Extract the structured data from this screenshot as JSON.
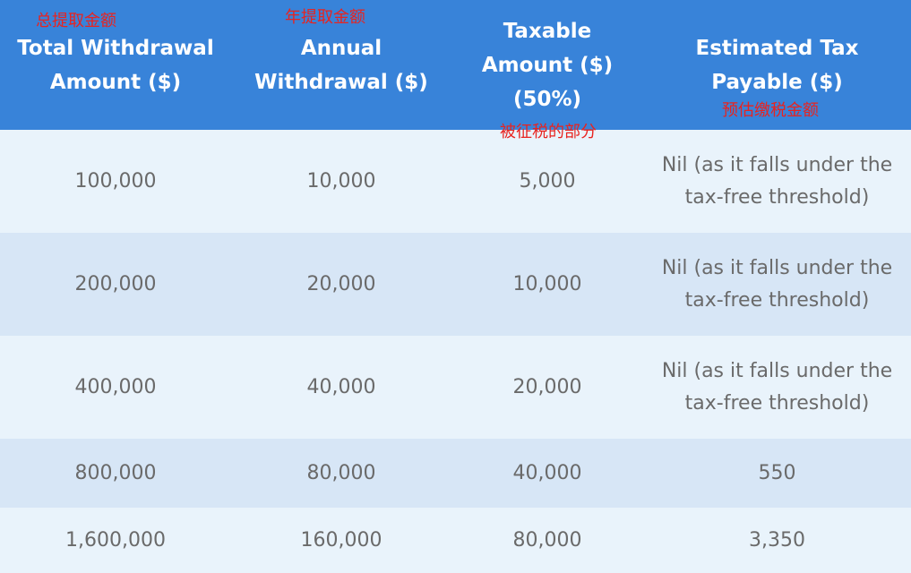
{
  "header": {
    "columns": [
      {
        "lines": [
          "Total Withdrawal",
          "Amount ($)"
        ],
        "note": "总提取金额"
      },
      {
        "lines": [
          "Annual",
          "Withdrawal ($)"
        ],
        "note": "年提取金额"
      },
      {
        "lines": [
          "Taxable",
          "Amount ($)",
          "(50%)"
        ],
        "note": "被征税的部分"
      },
      {
        "lines": [
          "Estimated Tax",
          "Payable ($)"
        ],
        "note": "预估缴税金额"
      }
    ]
  },
  "rows": [
    {
      "total": "100,000",
      "annual": "10,000",
      "taxable": "5,000",
      "tax": "Nil (as it falls under the tax-free threshold)"
    },
    {
      "total": "200,000",
      "annual": "20,000",
      "taxable": "10,000",
      "tax": "Nil (as it falls under the tax-free threshold)"
    },
    {
      "total": "400,000",
      "annual": "40,000",
      "taxable": "20,000",
      "tax": "Nil (as it falls under the tax-free threshold)"
    },
    {
      "total": "800,000",
      "annual": "80,000",
      "taxable": "40,000",
      "tax": "550"
    },
    {
      "total": "1,600,000",
      "annual": "160,000",
      "taxable": "80,000",
      "tax": "3,350"
    }
  ],
  "colors": {
    "header_bg": "#3883d9",
    "row_light": "#e9f3fb",
    "row_dark": "#d7e6f6",
    "note_red": "#e8231f"
  }
}
